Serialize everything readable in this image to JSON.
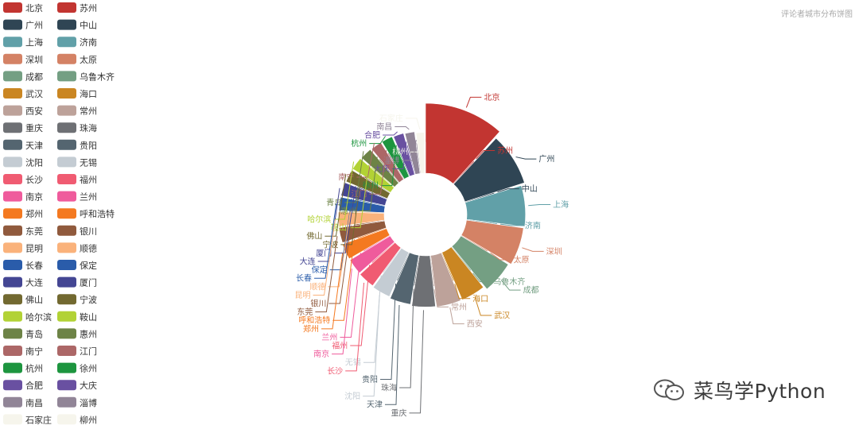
{
  "chart_data": {
    "type": "pie",
    "variant": "donut",
    "title": "评论者城市分布饼图",
    "legend_position": "left",
    "categories": [
      "北京",
      "苏州",
      "广州",
      "中山",
      "上海",
      "济南",
      "深圳",
      "太原",
      "成都",
      "乌鲁木齐",
      "武汉",
      "海口",
      "西安",
      "常州",
      "重庆",
      "珠海",
      "天津",
      "贵阳",
      "沈阳",
      "无锡",
      "长沙",
      "福州",
      "南京",
      "兰州",
      "郑州",
      "呼和浩特",
      "东莞",
      "银川",
      "昆明",
      "顺德",
      "长春",
      "保定",
      "大连",
      "厦门",
      "佛山",
      "宁波",
      "哈尔滨",
      "鞍山",
      "青岛",
      "惠州",
      "南宁",
      "江门",
      "杭州",
      "徐州",
      "合肥",
      "大庆",
      "南昌",
      "淄博",
      "石家庄",
      "柳州"
    ],
    "values": [
      88,
      2,
      62,
      2,
      50,
      2,
      47,
      2,
      41,
      2,
      32,
      2,
      32,
      2,
      31,
      2,
      28,
      2,
      25,
      2,
      23,
      2,
      22,
      2,
      22,
      2,
      21,
      2,
      20,
      2,
      19,
      2,
      19,
      2,
      18,
      2,
      18,
      2,
      17,
      2,
      16,
      2,
      16,
      2,
      15,
      2,
      14,
      2,
      12,
      2
    ],
    "colors": [
      "#c23531",
      "#2f4554",
      "#61a0a8",
      "#d48265",
      "#749f83",
      "#ca8622",
      "#bda29a",
      "#6e7074",
      "#546570",
      "#c4ccd3",
      "#f05b72",
      "#ef5b9c",
      "#f47920",
      "#905a3d",
      "#fab27b",
      "#2a5caa",
      "#444693",
      "#726930",
      "#b2d235",
      "#6d8346",
      "#ac6767",
      "#1d953f",
      "#6950a1",
      "#918597",
      "#f6f5ec"
    ]
  },
  "watermark": {
    "text": "菜鸟学Python",
    "icon": "wechat-icon"
  }
}
